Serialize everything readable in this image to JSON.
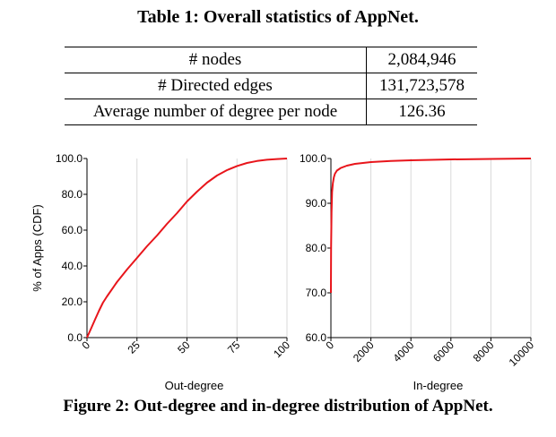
{
  "table_caption": "Table 1: Overall statistics of AppNet.",
  "table_rows": [
    {
      "label": "# nodes",
      "value": "2,084,946"
    },
    {
      "label": "# Directed edges",
      "value": "131,723,578"
    },
    {
      "label": "Average number of degree per node",
      "value": "126.36"
    }
  ],
  "figure_caption": "Figure 2: Out-degree and in-degree distribution of AppNet.",
  "chart_data": [
    {
      "type": "line",
      "xlabel": "Out-degree",
      "ylabel": "% of Apps (CDF)",
      "xlim": [
        0,
        100
      ],
      "ylim": [
        0,
        100
      ],
      "xticks": [
        "0",
        "25",
        "50",
        "75",
        "100"
      ],
      "yticks": [
        "0.0",
        "20.0",
        "40.0",
        "60.0",
        "80.0",
        "100.0"
      ],
      "grid": "vertical",
      "series": [
        {
          "color": "#e8151b",
          "x": [
            0,
            2,
            4,
            6,
            8,
            10,
            15,
            20,
            25,
            30,
            35,
            40,
            45,
            50,
            55,
            60,
            65,
            70,
            75,
            80,
            85,
            90,
            95,
            100
          ],
          "y": [
            0,
            5,
            10,
            15,
            19.5,
            23,
            31,
            38,
            44.5,
            51,
            57,
            63.5,
            69.5,
            76,
            81.5,
            86.5,
            90.5,
            93.5,
            95.8,
            97.5,
            98.6,
            99.3,
            99.7,
            100
          ]
        }
      ]
    },
    {
      "type": "line",
      "xlabel": "In-degree",
      "ylabel": "",
      "xlim": [
        0,
        10000
      ],
      "ylim": [
        60,
        100
      ],
      "xticks": [
        "0",
        "2000",
        "4000",
        "6000",
        "8000",
        "10000"
      ],
      "yticks": [
        "60.0",
        "70.0",
        "80.0",
        "90.0",
        "100.0"
      ],
      "grid": "vertical",
      "series": [
        {
          "color": "#e8151b",
          "x": [
            0,
            10,
            30,
            60,
            100,
            150,
            200,
            300,
            500,
            800,
            1200,
            2000,
            3000,
            4000,
            6000,
            8000,
            10000
          ],
          "y": [
            70,
            80,
            88,
            92.5,
            94.5,
            95.8,
            96.6,
            97.3,
            97.9,
            98.4,
            98.8,
            99.2,
            99.45,
            99.6,
            99.8,
            99.9,
            100
          ]
        }
      ]
    }
  ]
}
